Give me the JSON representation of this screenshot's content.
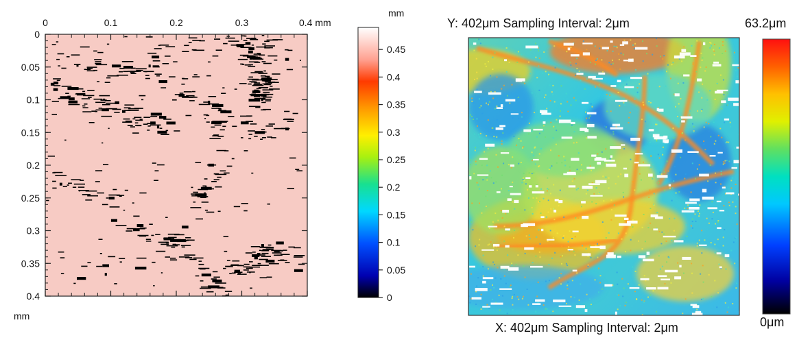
{
  "chart_data": [
    {
      "type": "heatmap",
      "title": "",
      "x_unit": "mm",
      "y_unit": "mm",
      "x_ticks": [
        0,
        0.1,
        0.2,
        0.3,
        0.4
      ],
      "x_tick_labels": [
        "0",
        "0.1",
        "0.2",
        "0.3",
        "0.4 mm"
      ],
      "y_ticks": [
        0,
        0.05,
        0.1,
        0.15,
        0.2,
        0.25,
        0.3,
        0.35,
        0.4
      ],
      "y_tick_labels": [
        "0",
        "0.05",
        "0.1",
        "0.15",
        "0.2",
        "0.25",
        "0.3",
        "0.35",
        "0.4"
      ],
      "xlim": [
        0,
        0.4
      ],
      "ylim": [
        0,
        0.4
      ],
      "colorbar": {
        "unit": "mm",
        "range": [
          0,
          0.49
        ],
        "ticks": [
          0,
          0.05,
          0.1,
          0.15,
          0.2,
          0.25,
          0.3,
          0.35,
          0.4,
          0.45
        ],
        "tick_labels": [
          "0",
          "0.05",
          "0.1",
          "0.15",
          "0.2",
          "0.25",
          "0.3",
          "0.35",
          "0.4",
          "0.45"
        ]
      },
      "dominant_value_approx": 0.47,
      "background_color": "#f7cbc4",
      "dropout_color": "#000000"
    },
    {
      "type": "heatmap",
      "title": "",
      "y_caption": "Y: 402μm Sampling Interval: 2μm",
      "x_caption": "X: 402μm Sampling Interval: 2μm",
      "colorbar": {
        "max_label": "63.2μm",
        "min_label": "0μm",
        "range": [
          0,
          63.2
        ]
      },
      "dominant_color": "#33d0e0",
      "dropout_color": "#ffffff"
    }
  ]
}
